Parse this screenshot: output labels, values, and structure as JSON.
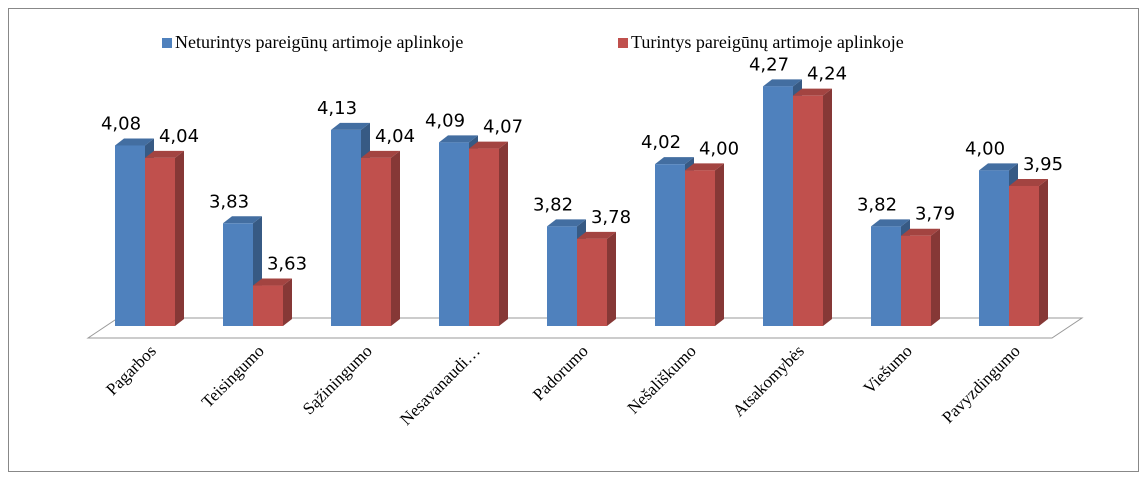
{
  "chart_data": {
    "type": "bar3d",
    "categories": [
      "Pagarbos",
      "Teisingumo",
      "Sąžiningumo",
      "Nesavanaudi…",
      "Padorumo",
      "Nešališkumo",
      "Atsakomybės",
      "Viešumo",
      "Pavyzdingumo"
    ],
    "series": [
      {
        "name": "Neturintys pareigūnų artimoje aplinkoje",
        "color": "#4f81bd",
        "values": [
          4.08,
          3.83,
          4.13,
          4.09,
          3.82,
          4.02,
          4.27,
          3.82,
          4.0
        ],
        "value_labels": [
          "4,08",
          "3,83",
          "4,13",
          "4,09",
          "3,82",
          "4,02",
          "4,27",
          "3,82",
          "4,00"
        ]
      },
      {
        "name": "Turintys pareigūnų artimoje aplinkoje",
        "color": "#c0504d",
        "values": [
          4.04,
          3.63,
          4.04,
          4.07,
          3.78,
          4.0,
          4.24,
          3.79,
          3.95
        ],
        "value_labels": [
          "4,04",
          "3,63",
          "4,04",
          "4,07",
          "3,78",
          "4,00",
          "4,24",
          "3,79",
          "3,95"
        ]
      }
    ],
    "ylim": [
      3.5,
      4.3
    ],
    "legend": "top"
  }
}
